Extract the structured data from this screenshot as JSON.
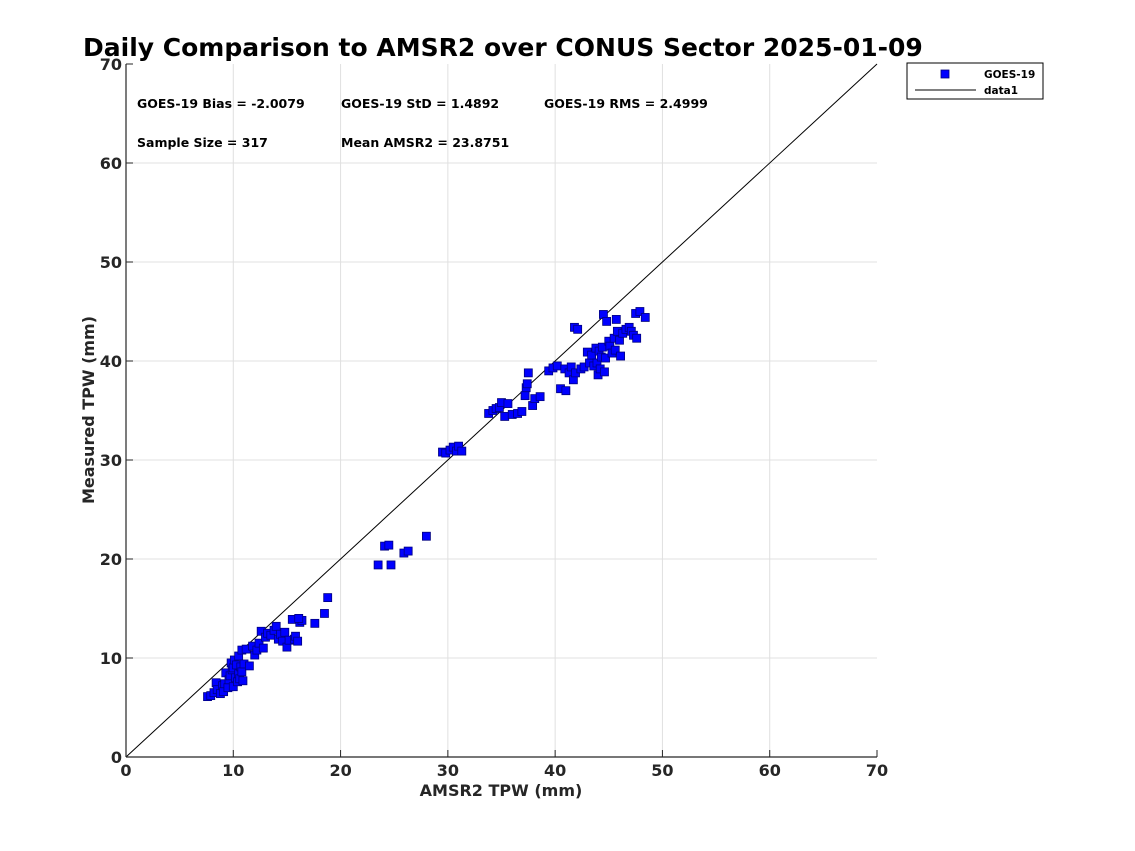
{
  "chart_data": {
    "type": "scatter",
    "title": "Daily Comparison to AMSR2 over CONUS Sector 2025-01-09",
    "xlabel": "AMSR2 TPW (mm)",
    "ylabel": "Measured TPW (mm)",
    "xlim": [
      0,
      70
    ],
    "ylim": [
      0,
      70
    ],
    "xticks": [
      "0",
      "10",
      "20",
      "30",
      "40",
      "50",
      "60",
      "70"
    ],
    "yticks": [
      "0",
      "10",
      "20",
      "30",
      "40",
      "50",
      "60",
      "70"
    ],
    "grid": true,
    "legend": {
      "position": "outside-top-right",
      "entries": [
        "GOES-19",
        "data1"
      ]
    },
    "annotations": {
      "bias": "GOES-19 Bias = -2.0079",
      "std": "GOES-19 StD = 1.4892",
      "rms": "GOES-19 RMS = 2.4999",
      "sample_size": "Sample Size = 317",
      "mean": "Mean AMSR2 = 23.8751"
    },
    "colors": {
      "marker": "#0000ff",
      "marker_edge": "#000080",
      "line": "#000000",
      "grid": "#e0e0e0"
    },
    "series": [
      {
        "name": "GOES-19",
        "kind": "markers",
        "points": [
          [
            7.6,
            6.1
          ],
          [
            7.9,
            6.2
          ],
          [
            8.2,
            6.5
          ],
          [
            8.4,
            7.5
          ],
          [
            8.5,
            6.8
          ],
          [
            8.8,
            6.4
          ],
          [
            9.0,
            7.2
          ],
          [
            9.1,
            6.6
          ],
          [
            9.2,
            7.4
          ],
          [
            9.3,
            8.5
          ],
          [
            9.5,
            7.0
          ],
          [
            9.6,
            7.8
          ],
          [
            9.7,
            8.2
          ],
          [
            9.8,
            9.5
          ],
          [
            9.9,
            8.8
          ],
          [
            10.0,
            7.1
          ],
          [
            10.0,
            9.0
          ],
          [
            10.1,
            9.8
          ],
          [
            10.2,
            8.0
          ],
          [
            10.3,
            9.3
          ],
          [
            10.4,
            7.6
          ],
          [
            10.5,
            8.4
          ],
          [
            10.5,
            10.2
          ],
          [
            10.6,
            7.9
          ],
          [
            10.7,
            9.1
          ],
          [
            10.8,
            8.6
          ],
          [
            10.8,
            10.8
          ],
          [
            10.9,
            7.7
          ],
          [
            11.0,
            9.4
          ],
          [
            11.2,
            10.9
          ],
          [
            11.5,
            9.2
          ],
          [
            11.8,
            11.2
          ],
          [
            12.0,
            10.3
          ],
          [
            12.2,
            10.8
          ],
          [
            12.4,
            11.5
          ],
          [
            12.6,
            12.7
          ],
          [
            12.8,
            11.0
          ],
          [
            13.0,
            12.1
          ],
          [
            13.2,
            12.5
          ],
          [
            13.5,
            12.3
          ],
          [
            13.8,
            12.8
          ],
          [
            14.0,
            13.2
          ],
          [
            14.2,
            11.9
          ],
          [
            14.4,
            12.4
          ],
          [
            14.6,
            11.7
          ],
          [
            14.8,
            12.6
          ],
          [
            15.0,
            11.1
          ],
          [
            15.2,
            11.8
          ],
          [
            15.5,
            13.9
          ],
          [
            15.7,
            11.9
          ],
          [
            15.8,
            12.2
          ],
          [
            16.0,
            11.7
          ],
          [
            16.2,
            13.6
          ],
          [
            16.4,
            13.8
          ],
          [
            16.1,
            14.0
          ],
          [
            17.6,
            13.5
          ],
          [
            18.5,
            14.5
          ],
          [
            18.8,
            16.1
          ],
          [
            23.5,
            19.4
          ],
          [
            24.1,
            21.3
          ],
          [
            24.5,
            21.4
          ],
          [
            24.7,
            19.4
          ],
          [
            25.9,
            20.6
          ],
          [
            26.3,
            20.8
          ],
          [
            28.0,
            22.3
          ],
          [
            29.5,
            30.8
          ],
          [
            29.8,
            30.7
          ],
          [
            30.2,
            31.0
          ],
          [
            30.5,
            31.3
          ],
          [
            30.8,
            30.9
          ],
          [
            31.0,
            31.4
          ],
          [
            31.3,
            30.9
          ],
          [
            33.8,
            34.7
          ],
          [
            34.2,
            35.0
          ],
          [
            34.5,
            35.2
          ],
          [
            34.8,
            35.3
          ],
          [
            35.0,
            35.8
          ],
          [
            35.3,
            34.4
          ],
          [
            35.6,
            35.7
          ],
          [
            36.0,
            34.6
          ],
          [
            36.5,
            34.7
          ],
          [
            36.9,
            34.9
          ],
          [
            37.2,
            36.5
          ],
          [
            37.3,
            37.3
          ],
          [
            37.4,
            37.7
          ],
          [
            37.5,
            38.8
          ],
          [
            37.9,
            35.5
          ],
          [
            38.1,
            36.2
          ],
          [
            38.6,
            36.4
          ],
          [
            39.4,
            39.0
          ],
          [
            39.8,
            39.3
          ],
          [
            40.2,
            39.5
          ],
          [
            40.5,
            37.2
          ],
          [
            40.9,
            39.2
          ],
          [
            41.0,
            37.0
          ],
          [
            41.3,
            38.8
          ],
          [
            41.5,
            39.4
          ],
          [
            41.7,
            38.1
          ],
          [
            41.8,
            43.4
          ],
          [
            41.9,
            38.8
          ],
          [
            42.1,
            43.2
          ],
          [
            42.4,
            39.2
          ],
          [
            42.7,
            39.4
          ],
          [
            43.0,
            40.9
          ],
          [
            43.2,
            39.8
          ],
          [
            43.4,
            40.6
          ],
          [
            43.6,
            39.5
          ],
          [
            43.8,
            41.3
          ],
          [
            43.9,
            39.8
          ],
          [
            44.0,
            38.6
          ],
          [
            44.1,
            41.0
          ],
          [
            44.2,
            39.2
          ],
          [
            44.3,
            40.4
          ],
          [
            44.4,
            41.4
          ],
          [
            44.5,
            44.7
          ],
          [
            44.6,
            38.9
          ],
          [
            44.7,
            40.3
          ],
          [
            44.8,
            44.0
          ],
          [
            45.0,
            42.0
          ],
          [
            45.1,
            41.5
          ],
          [
            45.3,
            40.8
          ],
          [
            45.5,
            42.3
          ],
          [
            45.6,
            41.1
          ],
          [
            45.7,
            44.2
          ],
          [
            45.8,
            43.0
          ],
          [
            46.0,
            42.1
          ],
          [
            46.1,
            40.5
          ],
          [
            46.3,
            42.8
          ],
          [
            46.6,
            43.2
          ],
          [
            46.9,
            43.4
          ],
          [
            47.1,
            43.0
          ],
          [
            47.3,
            42.6
          ],
          [
            47.5,
            44.8
          ],
          [
            47.6,
            42.3
          ],
          [
            47.9,
            45.0
          ],
          [
            48.4,
            44.4
          ]
        ]
      },
      {
        "name": "data1",
        "kind": "line",
        "x": [
          0,
          70
        ],
        "y": [
          0,
          70
        ]
      }
    ]
  }
}
